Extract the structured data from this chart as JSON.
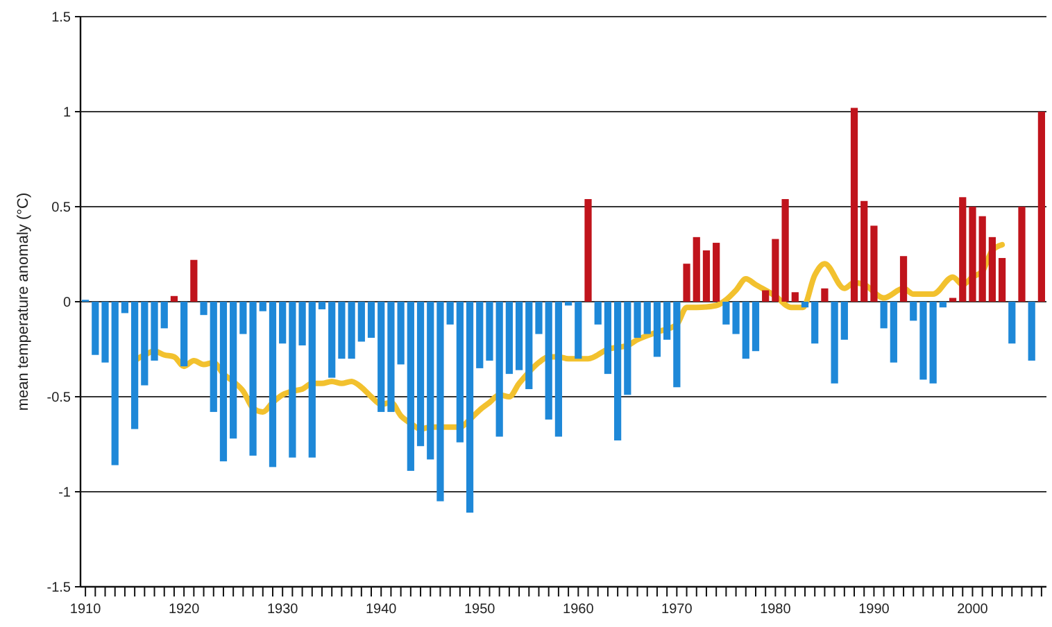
{
  "chart_data": {
    "type": "bar",
    "ylabel": "mean temperature anomaly (°C)",
    "x": [
      1910,
      1911,
      1912,
      1913,
      1914,
      1915,
      1916,
      1917,
      1918,
      1919,
      1920,
      1921,
      1922,
      1923,
      1924,
      1925,
      1926,
      1927,
      1928,
      1929,
      1930,
      1931,
      1932,
      1933,
      1934,
      1935,
      1936,
      1937,
      1938,
      1939,
      1940,
      1941,
      1942,
      1943,
      1944,
      1945,
      1946,
      1947,
      1948,
      1949,
      1950,
      1951,
      1952,
      1953,
      1954,
      1955,
      1956,
      1957,
      1958,
      1959,
      1960,
      1961,
      1962,
      1963,
      1964,
      1965,
      1966,
      1967,
      1968,
      1969,
      1970,
      1971,
      1972,
      1973,
      1974,
      1975,
      1976,
      1977,
      1978,
      1979,
      1980,
      1981,
      1982,
      1983,
      1984,
      1985,
      1986,
      1987,
      1988,
      1989,
      1990,
      1991,
      1992,
      1993,
      1994,
      1995,
      1996,
      1997,
      1998,
      1999,
      2000,
      2001,
      2002,
      2003,
      2004,
      2005,
      2006,
      2007
    ],
    "series": [
      {
        "values": [
          0.01,
          -0.28,
          -0.32,
          -0.86,
          -0.06,
          -0.67,
          -0.44,
          -0.31,
          -0.14,
          0.03,
          -0.34,
          0.22,
          -0.07,
          -0.58,
          -0.84,
          -0.72,
          -0.17,
          -0.81,
          -0.05,
          -0.87,
          -0.22,
          -0.82,
          -0.23,
          -0.82,
          -0.04,
          -0.4,
          -0.3,
          -0.3,
          -0.21,
          -0.19,
          -0.58,
          -0.58,
          -0.33,
          -0.89,
          -0.76,
          -0.83,
          -1.05,
          -0.12,
          -0.74,
          -1.11,
          -0.35,
          -0.31,
          -0.71,
          -0.38,
          -0.36,
          -0.46,
          -0.17,
          -0.62,
          -0.71,
          -0.02,
          -0.3,
          0.54,
          -0.12,
          -0.38,
          -0.73,
          -0.49,
          -0.19,
          -0.17,
          -0.29,
          -0.2,
          -0.45,
          0.2,
          0.34,
          0.27,
          0.31,
          -0.12,
          -0.17,
          -0.3,
          -0.26,
          0.06,
          0.33,
          0.54,
          0.05,
          -0.03,
          -0.22,
          0.07,
          -0.43,
          -0.2,
          1.02,
          0.53,
          0.4,
          -0.14,
          -0.32,
          0.24,
          -0.1,
          -0.41,
          -0.43,
          -0.03,
          0.02,
          0.55,
          0.5,
          0.45,
          0.34,
          0.23,
          -0.22,
          0.5,
          -0.31,
          1.0
        ],
        "colors": [
          "#1e88d8",
          "#1e88d8",
          "#1e88d8",
          "#1e88d8",
          "#1e88d8",
          "#1e88d8",
          "#1e88d8",
          "#1e88d8",
          "#1e88d8",
          "#c0141c",
          "#1e88d8",
          "#c0141c",
          "#1e88d8",
          "#1e88d8",
          "#1e88d8",
          "#1e88d8",
          "#1e88d8",
          "#1e88d8",
          "#1e88d8",
          "#1e88d8",
          "#1e88d8",
          "#1e88d8",
          "#1e88d8",
          "#1e88d8",
          "#1e88d8",
          "#1e88d8",
          "#1e88d8",
          "#1e88d8",
          "#1e88d8",
          "#1e88d8",
          "#1e88d8",
          "#1e88d8",
          "#1e88d8",
          "#1e88d8",
          "#1e88d8",
          "#1e88d8",
          "#1e88d8",
          "#1e88d8",
          "#1e88d8",
          "#1e88d8",
          "#1e88d8",
          "#1e88d8",
          "#1e88d8",
          "#1e88d8",
          "#1e88d8",
          "#1e88d8",
          "#1e88d8",
          "#1e88d8",
          "#1e88d8",
          "#1e88d8",
          "#1e88d8",
          "#c0141c",
          "#1e88d8",
          "#1e88d8",
          "#1e88d8",
          "#1e88d8",
          "#1e88d8",
          "#1e88d8",
          "#1e88d8",
          "#1e88d8",
          "#1e88d8",
          "#c0141c",
          "#c0141c",
          "#c0141c",
          "#c0141c",
          "#1e88d8",
          "#1e88d8",
          "#1e88d8",
          "#1e88d8",
          "#c0141c",
          "#c0141c",
          "#c0141c",
          "#c0141c",
          "#1e88d8",
          "#1e88d8",
          "#c0141c",
          "#1e88d8",
          "#1e88d8",
          "#c0141c",
          "#c0141c",
          "#c0141c",
          "#1e88d8",
          "#1e88d8",
          "#c0141c",
          "#1e88d8",
          "#1e88d8",
          "#1e88d8",
          "#1e88d8",
          "#c0141c",
          "#c0141c",
          "#c0141c",
          "#c0141c",
          "#c0141c",
          "#c0141c",
          "#1e88d8",
          "#c0141c",
          "#1e88d8",
          "#c0141c"
        ]
      },
      {
        "type": "line",
        "color": "#f2c12e",
        "x": [
          1915,
          1916,
          1917,
          1918,
          1919,
          1920,
          1921,
          1922,
          1923,
          1924,
          1925,
          1926,
          1927,
          1928,
          1929,
          1930,
          1931,
          1932,
          1933,
          1934,
          1935,
          1936,
          1937,
          1938,
          1939,
          1940,
          1941,
          1942,
          1943,
          1944,
          1945,
          1946,
          1947,
          1948,
          1949,
          1950,
          1951,
          1952,
          1953,
          1954,
          1955,
          1956,
          1957,
          1958,
          1959,
          1960,
          1961,
          1963,
          1965,
          1966,
          1968,
          1970,
          1971,
          1972,
          1974,
          1975,
          1976,
          1977,
          1978,
          1980,
          1981.6,
          1982.8,
          1984,
          1985,
          1987,
          1988,
          1989,
          1991,
          1993,
          1994,
          1996,
          1998,
          1999,
          2000,
          2001,
          2002,
          2003
        ],
        "values": [
          -0.31,
          -0.28,
          -0.26,
          -0.28,
          -0.29,
          -0.34,
          -0.31,
          -0.33,
          -0.32,
          -0.38,
          -0.42,
          -0.47,
          -0.56,
          -0.58,
          -0.53,
          -0.49,
          -0.47,
          -0.46,
          -0.43,
          -0.43,
          -0.42,
          -0.43,
          -0.42,
          -0.45,
          -0.5,
          -0.54,
          -0.53,
          -0.6,
          -0.64,
          -0.67,
          -0.66,
          -0.66,
          -0.66,
          -0.66,
          -0.62,
          -0.57,
          -0.53,
          -0.49,
          -0.5,
          -0.43,
          -0.37,
          -0.32,
          -0.29,
          -0.29,
          -0.3,
          -0.3,
          -0.3,
          -0.25,
          -0.23,
          -0.2,
          -0.16,
          -0.12,
          -0.03,
          -0.03,
          -0.02,
          0.01,
          0.06,
          0.12,
          0.09,
          0.03,
          -0.03,
          -0.03,
          0.14,
          0.2,
          0.07,
          0.1,
          0.09,
          0.02,
          0.07,
          0.04,
          0.04,
          0.13,
          0.09,
          0.13,
          0.16,
          0.27,
          0.3
        ]
      }
    ],
    "xlim": [
      1909.5,
      2007.5
    ],
    "xticks": [
      1910,
      {
        "value": 1911,
        "label": null
      },
      {
        "value": 1912,
        "label": null
      },
      {
        "value": 1913,
        "label": null
      },
      {
        "value": 1914,
        "label": null
      },
      {
        "value": 1915,
        "label": null
      },
      {
        "value": 1916,
        "label": null
      },
      {
        "value": 1917,
        "label": null
      },
      {
        "value": 1918,
        "label": null
      },
      {
        "value": 1919,
        "label": null
      },
      1920,
      {
        "value": 1921,
        "label": null
      },
      {
        "value": 1922,
        "label": null
      },
      {
        "value": 1923,
        "label": null
      },
      {
        "value": 1924,
        "label": null
      },
      {
        "value": 1925,
        "label": null
      },
      {
        "value": 1926,
        "label": null
      },
      {
        "value": 1927,
        "label": null
      },
      {
        "value": 1928,
        "label": null
      },
      {
        "value": 1929,
        "label": null
      },
      1930,
      {
        "value": 1931,
        "label": null
      },
      {
        "value": 1932,
        "label": null
      },
      {
        "value": 1933,
        "label": null
      },
      {
        "value": 1934,
        "label": null
      },
      {
        "value": 1935,
        "label": null
      },
      {
        "value": 1936,
        "label": null
      },
      {
        "value": 1937,
        "label": null
      },
      {
        "value": 1938,
        "label": null
      },
      {
        "value": 1939,
        "label": null
      },
      1940,
      {
        "value": 1941,
        "label": null
      },
      {
        "value": 1942,
        "label": null
      },
      {
        "value": 1943,
        "label": null
      },
      {
        "value": 1944,
        "label": null
      },
      {
        "value": 1945,
        "label": null
      },
      {
        "value": 1946,
        "label": null
      },
      {
        "value": 1947,
        "label": null
      },
      {
        "value": 1948,
        "label": null
      },
      {
        "value": 1949,
        "label": null
      },
      1950,
      {
        "value": 1951,
        "label": null
      },
      {
        "value": 1952,
        "label": null
      },
      {
        "value": 1953,
        "label": null
      },
      {
        "value": 1954,
        "label": null
      },
      {
        "value": 1955,
        "label": null
      },
      {
        "value": 1956,
        "label": null
      },
      {
        "value": 1957,
        "label": null
      },
      {
        "value": 1958,
        "label": null
      },
      {
        "value": 1959,
        "label": null
      },
      1960,
      {
        "value": 1961,
        "label": null
      },
      {
        "value": 1962,
        "label": null
      },
      {
        "value": 1963,
        "label": null
      },
      {
        "value": 1964,
        "label": null
      },
      {
        "value": 1965,
        "label": null
      },
      {
        "value": 1966,
        "label": null
      },
      {
        "value": 1967,
        "label": null
      },
      {
        "value": 1968,
        "label": null
      },
      {
        "value": 1969,
        "label": null
      },
      1970,
      {
        "value": 1971,
        "label": null
      },
      {
        "value": 1972,
        "label": null
      },
      {
        "value": 1973,
        "label": null
      },
      {
        "value": 1974,
        "label": null
      },
      {
        "value": 1975,
        "label": null
      },
      {
        "value": 1976,
        "label": null
      },
      {
        "value": 1977,
        "label": null
      },
      {
        "value": 1978,
        "label": null
      },
      {
        "value": 1979,
        "label": null
      },
      1980,
      {
        "value": 1981,
        "label": null
      },
      {
        "value": 1982,
        "label": null
      },
      {
        "value": 1983,
        "label": null
      },
      {
        "value": 1984,
        "label": null
      },
      {
        "value": 1985,
        "label": null
      },
      {
        "value": 1986,
        "label": null
      },
      {
        "value": 1987,
        "label": null
      },
      {
        "value": 1988,
        "label": null
      },
      {
        "value": 1989,
        "label": null
      },
      1990,
      {
        "value": 1991,
        "label": null
      },
      {
        "value": 1992,
        "label": null
      },
      {
        "value": 1993,
        "label": null
      },
      {
        "value": 1994,
        "label": null
      },
      {
        "value": 1995,
        "label": null
      },
      {
        "value": 1996,
        "label": null
      },
      {
        "value": 1997,
        "label": null
      },
      {
        "value": 1998,
        "label": null
      },
      {
        "value": 1999,
        "label": null
      },
      2000,
      {
        "value": 2001,
        "label": null
      },
      {
        "value": 2002,
        "label": null
      },
      {
        "value": 2003,
        "label": null
      },
      {
        "value": 2004,
        "label": null
      },
      {
        "value": 2005,
        "label": null
      },
      {
        "value": 2006,
        "label": null
      },
      {
        "value": 2007,
        "label": null
      }
    ],
    "ylim": [
      -1.5,
      1.5
    ],
    "yticks": [
      -1.5,
      -1,
      -0.5,
      0,
      0.5,
      1,
      1.5
    ],
    "grid": "y",
    "line_style": "solid",
    "marker": "none"
  }
}
